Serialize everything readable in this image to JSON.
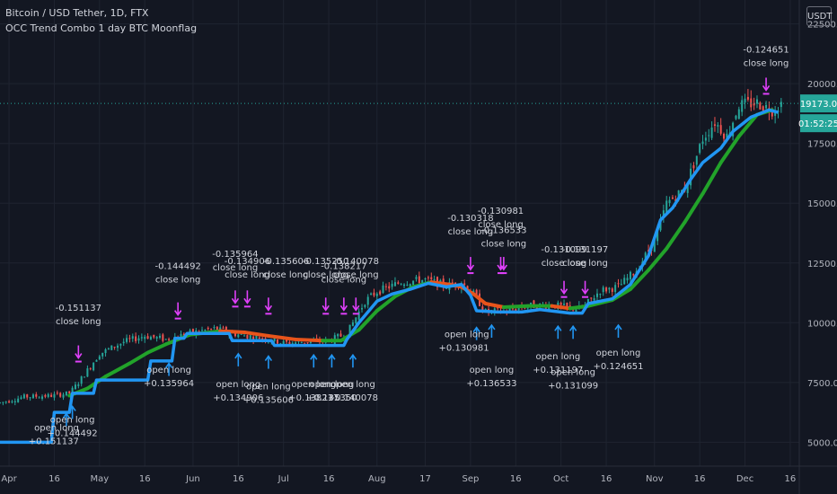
{
  "header": {
    "symbol": "Bitcoin / USD Tether, 1D, FTX",
    "study": "OCC Trend Combo 1 day BTC Moonflag",
    "currency": "USDT"
  },
  "colors": {
    "background": "#131722",
    "grid": "#1f2430",
    "axis_text": "#b2b5be",
    "candle_up": "#26a69a",
    "candle_down": "#ef5350",
    "trend_fast": "#2196f3",
    "trend_slow_up": "#22a32a",
    "trend_slow_down": "#e8541b",
    "open_long": "#2196f3",
    "close_long": "#e040fb",
    "price_label": "#26a69a"
  },
  "price_labels": {
    "last_price": "19173.0",
    "countdown": "01:52:25"
  },
  "chart_data": {
    "type": "line",
    "y_ticks": [
      "5000.0",
      "7500.0",
      "10000.0",
      "12500.0",
      "15000.0",
      "17500.0",
      "20000.0",
      "22500.0"
    ],
    "ylim": [
      4000,
      23500
    ],
    "x_ticks": [
      {
        "label": "Apr",
        "day": 0
      },
      {
        "label": "16",
        "day": 15
      },
      {
        "label": "May",
        "day": 30
      },
      {
        "label": "16",
        "day": 45
      },
      {
        "label": "Jun",
        "day": 61
      },
      {
        "label": "16",
        "day": 76
      },
      {
        "label": "Jul",
        "day": 91
      },
      {
        "label": "16",
        "day": 106
      },
      {
        "label": "Aug",
        "day": 122
      },
      {
        "label": "17",
        "day": 138
      },
      {
        "label": "Sep",
        "day": 153
      },
      {
        "label": "16",
        "day": 168
      },
      {
        "label": "Oct",
        "day": 183
      },
      {
        "label": "16",
        "day": 198
      },
      {
        "label": "Nov",
        "day": 214
      },
      {
        "label": "16",
        "day": 229
      },
      {
        "label": "Dec",
        "day": 244
      },
      {
        "label": "16",
        "day": 259
      }
    ],
    "xlim": [
      -3,
      262
    ],
    "price_anchors": [
      [
        -3,
        6650
      ],
      [
        5,
        6900
      ],
      [
        14,
        6950
      ],
      [
        20,
        7050
      ],
      [
        23,
        7500
      ],
      [
        30,
        8700
      ],
      [
        38,
        9200
      ],
      [
        45,
        9450
      ],
      [
        52,
        9300
      ],
      [
        61,
        9600
      ],
      [
        68,
        9750
      ],
      [
        76,
        9500
      ],
      [
        85,
        9350
      ],
      [
        91,
        9150
      ],
      [
        98,
        9200
      ],
      [
        106,
        9250
      ],
      [
        112,
        9550
      ],
      [
        118,
        10900
      ],
      [
        122,
        11300
      ],
      [
        130,
        11700
      ],
      [
        138,
        11800
      ],
      [
        145,
        11550
      ],
      [
        150,
        11700
      ],
      [
        154,
        11200
      ],
      [
        158,
        10450
      ],
      [
        165,
        10500
      ],
      [
        172,
        10700
      ],
      [
        180,
        10750
      ],
      [
        186,
        10600
      ],
      [
        190,
        10600
      ],
      [
        196,
        11350
      ],
      [
        202,
        11500
      ],
      [
        208,
        12200
      ],
      [
        214,
        13400
      ],
      [
        218,
        15000
      ],
      [
        224,
        15600
      ],
      [
        230,
        17700
      ],
      [
        234,
        18400
      ],
      [
        238,
        17800
      ],
      [
        242,
        19100
      ],
      [
        248,
        19200
      ],
      [
        253,
        18900
      ],
      [
        256,
        19173
      ]
    ],
    "series": [
      {
        "role": "fast-trend",
        "points": [
          [
            -3,
            5000
          ],
          [
            14,
            5000
          ],
          [
            15,
            6250
          ],
          [
            20,
            6250
          ],
          [
            21,
            7050
          ],
          [
            28,
            7050
          ],
          [
            29,
            7600
          ],
          [
            46,
            7600
          ],
          [
            47,
            8400
          ],
          [
            54,
            8400
          ],
          [
            55,
            9350
          ],
          [
            58,
            9350
          ],
          [
            59,
            9550
          ],
          [
            73,
            9550
          ],
          [
            74,
            9250
          ],
          [
            87,
            9250
          ],
          [
            88,
            9050
          ],
          [
            111,
            9050
          ],
          [
            112,
            9300
          ],
          [
            116,
            10000
          ],
          [
            122,
            10900
          ],
          [
            127,
            11200
          ],
          [
            133,
            11400
          ],
          [
            139,
            11650
          ],
          [
            145,
            11500
          ],
          [
            150,
            11600
          ],
          [
            153,
            11150
          ],
          [
            155,
            10500
          ],
          [
            162,
            10450
          ],
          [
            170,
            10450
          ],
          [
            176,
            10550
          ],
          [
            186,
            10400
          ],
          [
            190,
            10400
          ],
          [
            192,
            10800
          ],
          [
            200,
            11000
          ],
          [
            206,
            11600
          ],
          [
            212,
            12800
          ],
          [
            216,
            14300
          ],
          [
            220,
            14800
          ],
          [
            226,
            16000
          ],
          [
            230,
            16700
          ],
          [
            236,
            17300
          ],
          [
            240,
            18000
          ],
          [
            246,
            18600
          ],
          [
            252,
            18900
          ],
          [
            255,
            18800
          ]
        ]
      },
      {
        "role": "slow-trend",
        "points": [
          [
            20,
            6950
          ],
          [
            26,
            7250
          ],
          [
            32,
            7750
          ],
          [
            40,
            8300
          ],
          [
            46,
            8750
          ],
          [
            52,
            9100
          ],
          [
            60,
            9500
          ],
          [
            70,
            9650
          ],
          [
            78,
            9600
          ],
          [
            86,
            9450
          ],
          [
            95,
            9300
          ],
          [
            104,
            9250
          ],
          [
            110,
            9250
          ],
          [
            116,
            9700
          ],
          [
            122,
            10500
          ],
          [
            128,
            11100
          ],
          [
            134,
            11500
          ],
          [
            140,
            11700
          ],
          [
            146,
            11600
          ],
          [
            150,
            11500
          ],
          [
            154,
            11200
          ],
          [
            158,
            10800
          ],
          [
            164,
            10650
          ],
          [
            172,
            10700
          ],
          [
            180,
            10700
          ],
          [
            186,
            10600
          ],
          [
            192,
            10700
          ],
          [
            200,
            10950
          ],
          [
            206,
            11400
          ],
          [
            212,
            12200
          ],
          [
            218,
            13100
          ],
          [
            224,
            14200
          ],
          [
            230,
            15400
          ],
          [
            236,
            16700
          ],
          [
            242,
            17800
          ],
          [
            248,
            18700
          ],
          [
            253,
            18900
          ]
        ]
      }
    ],
    "open_long_signals": [
      {
        "day": 19,
        "low": 6200,
        "text": [
          "open long",
          "+0.151137"
        ],
        "text_y": 5480,
        "anchor": "end"
      },
      {
        "day": 21,
        "low": 6500,
        "text": [
          "open long",
          "+0.144492"
        ],
        "text_y": 5830,
        "anchor": "middle"
      },
      {
        "day": 53,
        "low": 8300,
        "text": [
          "open long",
          "+0.135964"
        ],
        "text_y": 7910,
        "anchor": "middle"
      },
      {
        "day": 76,
        "low": 8700,
        "text": [
          "open long",
          "+0.134906"
        ],
        "text_y": 7300,
        "anchor": "middle"
      },
      {
        "day": 86,
        "low": 8600,
        "text": [
          "open long",
          "+0.135606"
        ],
        "text_y": 7210,
        "anchor": "middle"
      },
      {
        "day": 101,
        "low": 8650,
        "text": [
          "open long",
          "+0.138217"
        ],
        "text_y": 7300,
        "anchor": "middle"
      },
      {
        "day": 107,
        "low": 8650,
        "text": [
          "open long",
          "+0.135350"
        ],
        "text_y": 7300,
        "anchor": "middle"
      },
      {
        "day": 114,
        "low": 8650,
        "text": [
          "open long",
          "+0.140078"
        ],
        "text_y": 7300,
        "anchor": "middle"
      },
      {
        "day": 155,
        "low": 9800,
        "text": [
          "open long",
          "+0.130981"
        ],
        "text_y": 9400,
        "anchor": "end"
      },
      {
        "day": 160,
        "low": 9900,
        "text": [
          "open long",
          "+0.136533"
        ],
        "text_y": 7910,
        "anchor": "middle"
      },
      {
        "day": 182,
        "low": 9850,
        "text": [
          "open long",
          "+0.131197"
        ],
        "text_y": 8470,
        "anchor": "middle"
      },
      {
        "day": 187,
        "low": 9850,
        "text": [
          "open long",
          "+0.131099"
        ],
        "text_y": 7810,
        "anchor": "middle"
      },
      {
        "day": 202,
        "low": 9900,
        "text": [
          "open long",
          "+0.124651"
        ],
        "text_y": 8620,
        "anchor": "middle"
      }
    ],
    "close_long_signals": [
      {
        "day": 23,
        "high": 8300,
        "text": [
          "-0.151137",
          "close long"
        ],
        "text_y": 10500,
        "anchor": "middle"
      },
      {
        "day": 56,
        "high": 10100,
        "text": [
          "-0.144492",
          "close long"
        ],
        "text_y": 12250,
        "anchor": "middle"
      },
      {
        "day": 75,
        "high": 10600,
        "text": [
          "-0.135964",
          "close long"
        ],
        "text_y": 12750,
        "anchor": "middle"
      },
      {
        "day": 79,
        "high": 10600,
        "text": [
          "-0.134906",
          "close long"
        ],
        "text_y": 12450,
        "anchor": "middle"
      },
      {
        "day": 86,
        "high": 10300,
        "text": [
          "-0.135606",
          "close long"
        ],
        "text_y": 12450,
        "anchor": "start"
      },
      {
        "day": 105,
        "high": 10300,
        "text": [
          "-0.135250",
          "close long"
        ],
        "text_y": 12450,
        "anchor": "middle"
      },
      {
        "day": 111,
        "high": 10300,
        "text": [
          "-0.138217",
          "close long"
        ],
        "text_y": 12250,
        "anchor": "middle"
      },
      {
        "day": 115,
        "high": 10300,
        "text": [
          "-0.140078",
          "close long"
        ],
        "text_y": 12450,
        "anchor": "middle"
      },
      {
        "day": 153,
        "high": 12000,
        "text": [
          "-0.130318",
          "close long"
        ],
        "text_y": 14250,
        "anchor": "middle"
      },
      {
        "day": 163,
        "high": 12000,
        "text": [
          "-0.130981",
          "close long"
        ],
        "text_y": 14550,
        "anchor": "middle"
      },
      {
        "day": 164,
        "high": 12000,
        "text": [
          "-0.136533",
          "close long"
        ],
        "text_y": 13750,
        "anchor": "middle"
      },
      {
        "day": 184,
        "high": 11000,
        "text": [
          "-0.131099",
          "close long"
        ],
        "text_y": 12950,
        "anchor": "middle"
      },
      {
        "day": 191,
        "high": 11000,
        "text": [
          "-0.131197",
          "close long"
        ],
        "text_y": 12950,
        "anchor": "middle"
      },
      {
        "day": 251,
        "high": 19500,
        "text": [
          "-0.124651",
          "close long"
        ],
        "text_y": 21300,
        "anchor": "middle"
      }
    ]
  }
}
